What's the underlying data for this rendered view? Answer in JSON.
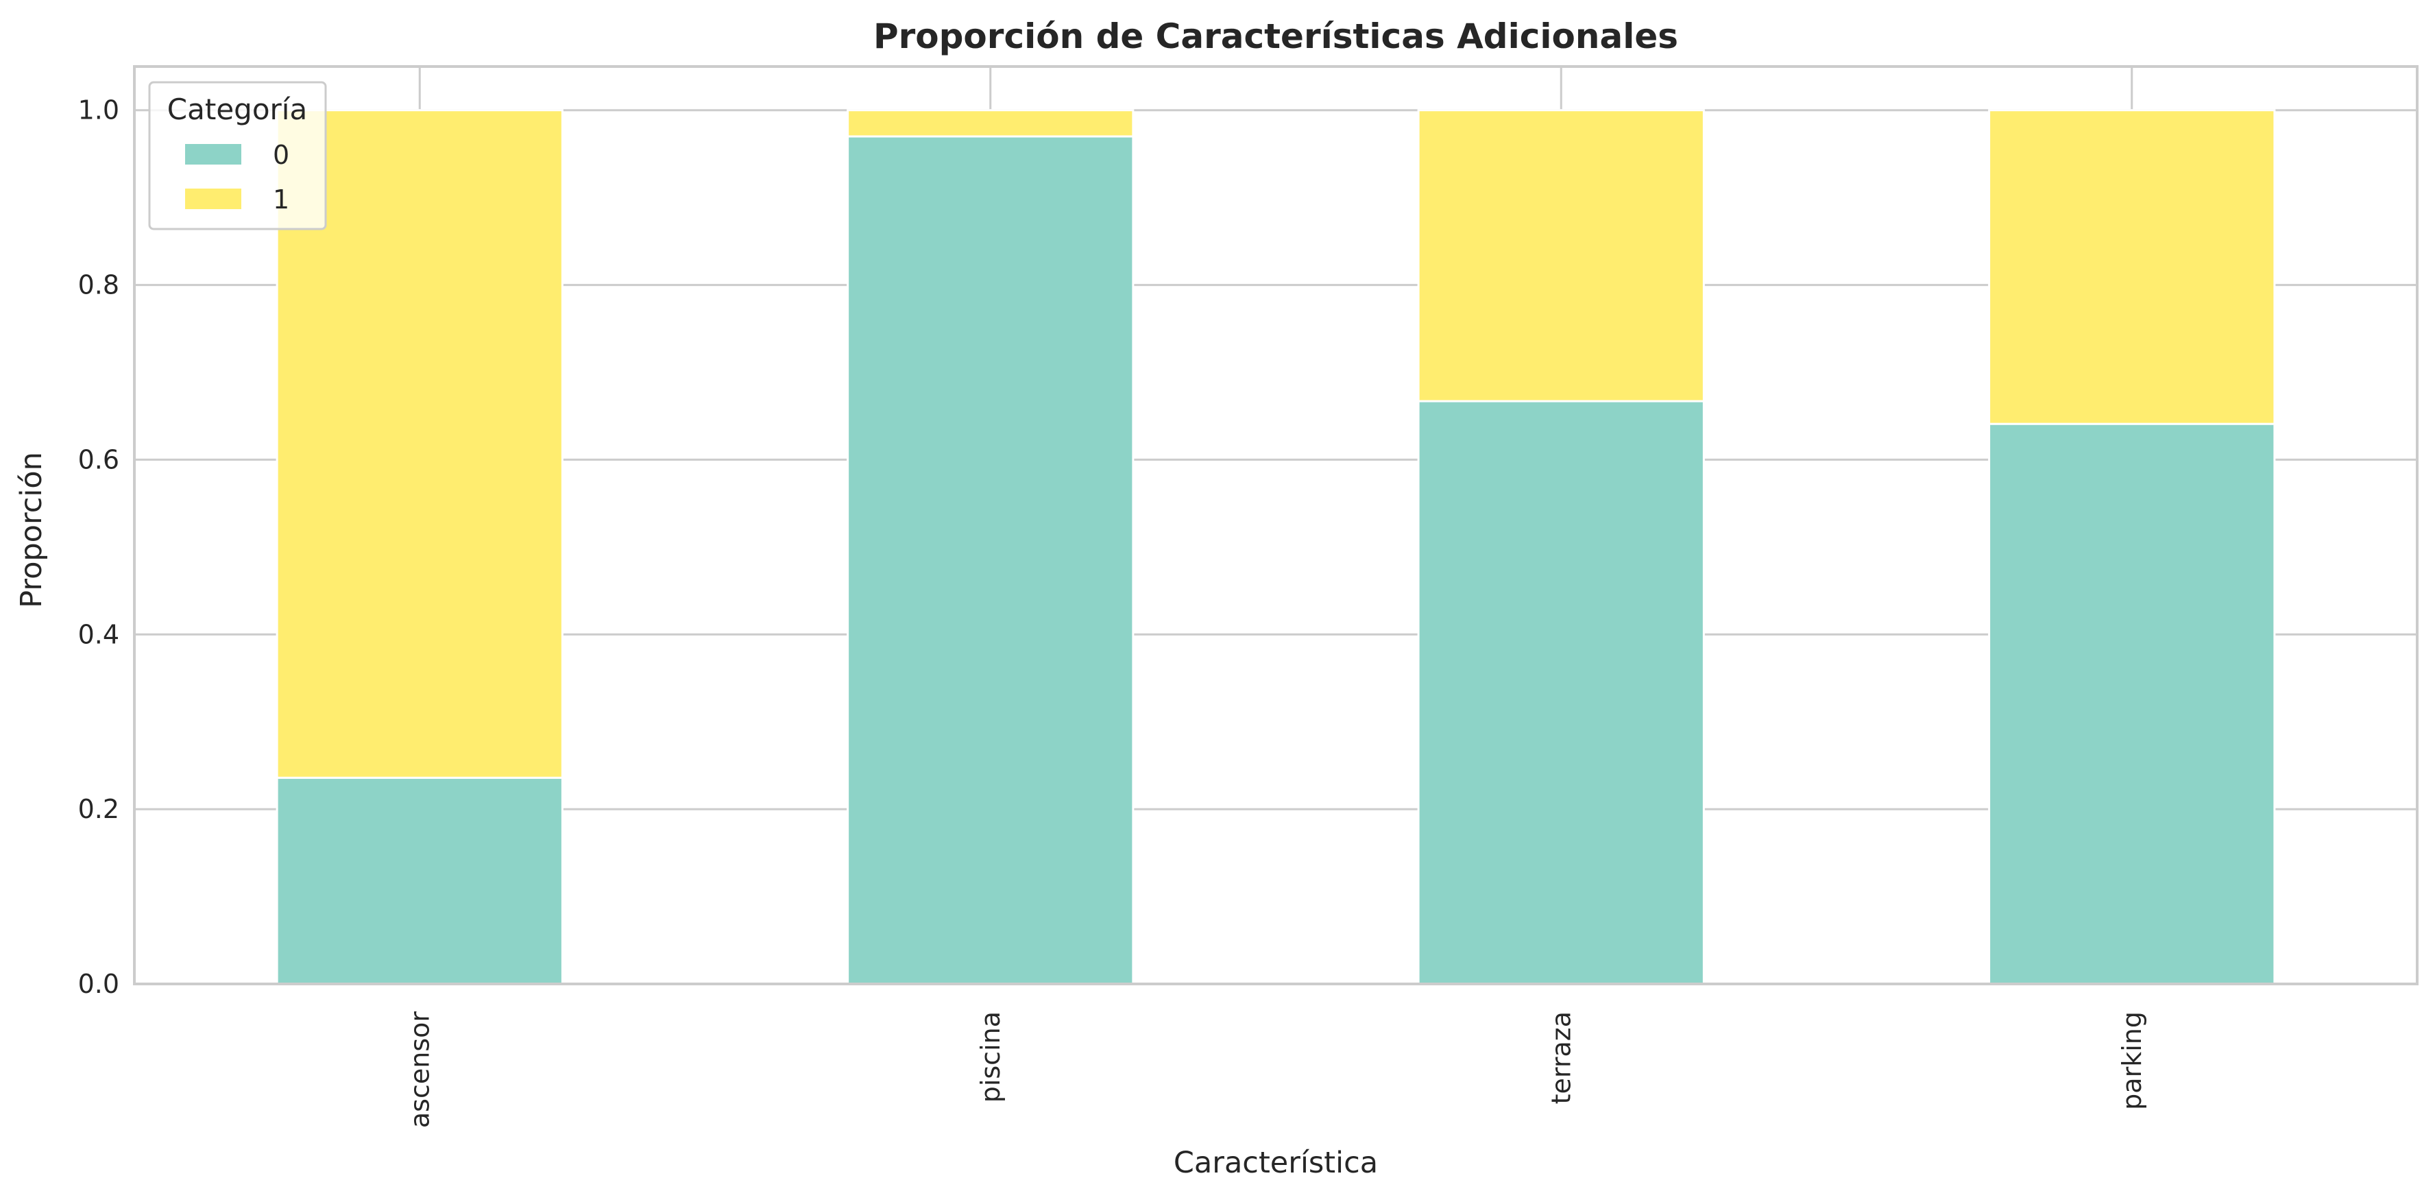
{
  "chart_data": {
    "type": "bar",
    "stacked": true,
    "title": "Proporción de Características Adicionales",
    "xlabel": "Característica",
    "ylabel": "Proporción",
    "categories": [
      "ascensor",
      "piscina",
      "terraza",
      "parking"
    ],
    "series": [
      {
        "name": "0",
        "values": [
          0.236,
          0.97,
          0.667,
          0.641
        ],
        "color": "#8dd3c7"
      },
      {
        "name": "1",
        "values": [
          0.764,
          0.03,
          0.333,
          0.359
        ],
        "color": "#ffed6f"
      }
    ],
    "ylim": [
      0,
      1.05
    ],
    "yticks": [
      0.0,
      0.2,
      0.4,
      0.6,
      0.8,
      1.0
    ],
    "ytick_labels": [
      "0.0",
      "0.2",
      "0.4",
      "0.6",
      "0.8",
      "1.0"
    ],
    "grid": true,
    "legend": {
      "title": "Categoría",
      "position": "top-left"
    },
    "colors": {
      "grid": "#cccccc",
      "spine": "#cccccc",
      "text": "#262626",
      "bar_edge": "#ffffff"
    }
  }
}
